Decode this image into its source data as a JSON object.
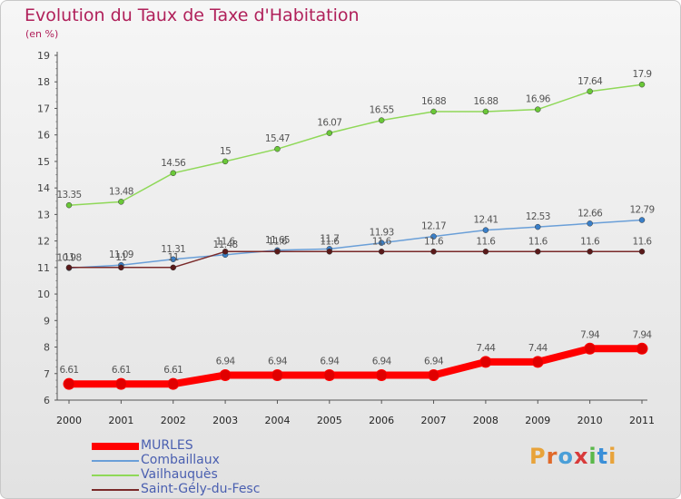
{
  "title": "Evolution du Taux de Taxe d'Habitation",
  "subtitle": "(en %)",
  "logo": {
    "text": "Proxiti",
    "letters": [
      "P",
      "r",
      "o",
      "x",
      "i",
      "t",
      "i"
    ],
    "colors": [
      "#e8a33a",
      "#e06a2a",
      "#4a9fd8",
      "#d83a3a",
      "#5ab84a",
      "#3a8fd8",
      "#e8a33a"
    ]
  },
  "chart_data": {
    "type": "line",
    "x": [
      "2000",
      "2001",
      "2002",
      "2003",
      "2004",
      "2005",
      "2006",
      "2007",
      "2008",
      "2009",
      "2010",
      "2011"
    ],
    "ylim": [
      6,
      19
    ],
    "yticks": [
      "6",
      "7",
      "8",
      "9",
      "10",
      "11",
      "12",
      "13",
      "14",
      "15",
      "16",
      "17",
      "18",
      "19"
    ],
    "grid": false,
    "legend_position": "bottom-left",
    "series": [
      {
        "name": "MURLES",
        "color": "#ff0000",
        "width": "thick",
        "marker_color": "#e00000",
        "values": [
          6.61,
          6.61,
          6.61,
          6.94,
          6.94,
          6.94,
          6.94,
          6.94,
          7.44,
          7.44,
          7.94,
          7.94
        ],
        "labels": [
          "6.61",
          "6.61",
          "6.61",
          "6.94",
          "6.94",
          "6.94",
          "6.94",
          "6.94",
          "7.44",
          "7.44",
          "7.94",
          "7.94"
        ]
      },
      {
        "name": "Combaillaux",
        "color": "#6a9fd8",
        "width": "thin",
        "marker_color": "#3a7fc8",
        "values": [
          10.98,
          11.09,
          11.31,
          11.48,
          11.65,
          11.7,
          11.93,
          12.17,
          12.41,
          12.53,
          12.66,
          12.79
        ],
        "labels": [
          "10.98",
          "11.09",
          "11.31",
          "11.48",
          "11.65",
          "11.7",
          "11.93",
          "12.17",
          "12.41",
          "12.53",
          "12.66",
          "12.79"
        ]
      },
      {
        "name": "Vailhauquès",
        "color": "#8fd858",
        "width": "thin",
        "marker_color": "#6ac838",
        "values": [
          13.35,
          13.48,
          14.56,
          15,
          15.47,
          16.07,
          16.55,
          16.88,
          16.88,
          16.96,
          17.64,
          17.9
        ],
        "labels": [
          "13.35",
          "13.48",
          "14.56",
          "15",
          "15.47",
          "16.07",
          "16.55",
          "16.88",
          "16.88",
          "16.96",
          "17.64",
          "17.9"
        ]
      },
      {
        "name": "Saint-Gély-du-Fesc",
        "color": "#7a2a2a",
        "width": "thin",
        "marker_color": "#5a1a1a",
        "values": [
          11,
          11,
          11,
          11.6,
          11.6,
          11.6,
          11.6,
          11.6,
          11.6,
          11.6,
          11.6,
          11.6
        ],
        "labels": [
          "11",
          "11",
          "11",
          "11.6",
          "11.6",
          "11.6",
          "11.6",
          "11.6",
          "11.6",
          "11.6",
          "11.6",
          "11.6"
        ]
      }
    ]
  }
}
